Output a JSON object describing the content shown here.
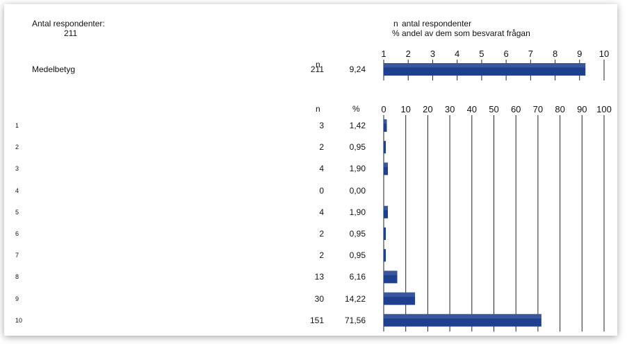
{
  "header": {
    "respondents_label": "Antal respondenter:",
    "respondents_value": "211",
    "legend": [
      {
        "key": "n",
        "text": "antal respondenter"
      },
      {
        "key": "%",
        "text": "andel av dem som besvarat frågan"
      }
    ]
  },
  "mean_section": {
    "col_n": "n",
    "label": "Medelbetyg",
    "n": "211",
    "value": "9,24"
  },
  "distribution_section": {
    "col_n": "n",
    "col_pct": "%",
    "rows": [
      {
        "label": "1",
        "n": "3",
        "pct": "1,42"
      },
      {
        "label": "2",
        "n": "2",
        "pct": "0,95"
      },
      {
        "label": "3",
        "n": "4",
        "pct": "1,90"
      },
      {
        "label": "4",
        "n": "0",
        "pct": "0,00"
      },
      {
        "label": "5",
        "n": "4",
        "pct": "1,90"
      },
      {
        "label": "6",
        "n": "2",
        "pct": "0,95"
      },
      {
        "label": "7",
        "n": "2",
        "pct": "0,95"
      },
      {
        "label": "8",
        "n": "13",
        "pct": "6,16"
      },
      {
        "label": "9",
        "n": "30",
        "pct": "14,22"
      },
      {
        "label": "10",
        "n": "151",
        "pct": "71,56"
      }
    ]
  },
  "colors": {
    "bar": "#1f3f8f",
    "grid": "#222222"
  },
  "chart_data": [
    {
      "type": "bar",
      "orientation": "horizontal",
      "categories": [
        "Medelbetyg"
      ],
      "values": [
        9.24
      ],
      "xlim": [
        1,
        10
      ],
      "ticks": [
        "1",
        "2",
        "3",
        "4",
        "5",
        "6",
        "7",
        "8",
        "9",
        "10"
      ],
      "grid": true
    },
    {
      "type": "bar",
      "orientation": "horizontal",
      "categories": [
        "1",
        "2",
        "3",
        "4",
        "5",
        "6",
        "7",
        "8",
        "9",
        "10"
      ],
      "values": [
        1.42,
        0.95,
        1.9,
        0.0,
        1.9,
        0.95,
        0.95,
        6.16,
        14.22,
        71.56
      ],
      "xlim": [
        0,
        100
      ],
      "ticks": [
        "0",
        "10",
        "20",
        "30",
        "40",
        "50",
        "60",
        "70",
        "80",
        "90",
        "100"
      ],
      "grid": true
    }
  ]
}
